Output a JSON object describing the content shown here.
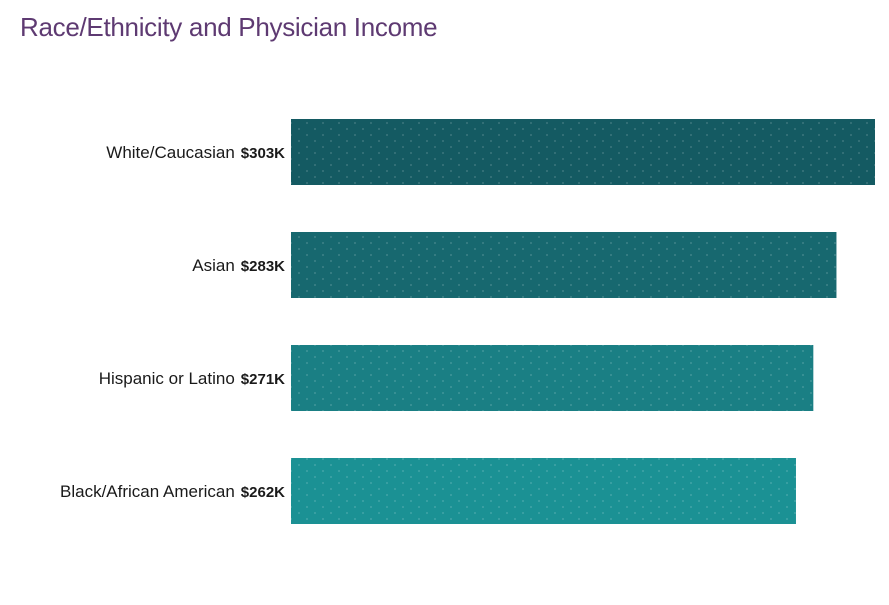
{
  "chart_data": {
    "type": "bar",
    "orientation": "horizontal",
    "title": "Race/Ethnicity and Physician Income",
    "categories": [
      "White/Caucasian",
      "Asian",
      "Hispanic or Latino",
      "Black/African American"
    ],
    "values": [
      303,
      283,
      271,
      262
    ],
    "value_labels": [
      "$303K",
      "$283K",
      "$271K",
      "$262K"
    ],
    "unit": "$K",
    "xlim": [
      0,
      303
    ],
    "grid": false,
    "legend": "none",
    "bar_colors": [
      "#145a62",
      "#17686f",
      "#1a7f84",
      "#1b9194"
    ],
    "title_color": "#5e3a72"
  }
}
